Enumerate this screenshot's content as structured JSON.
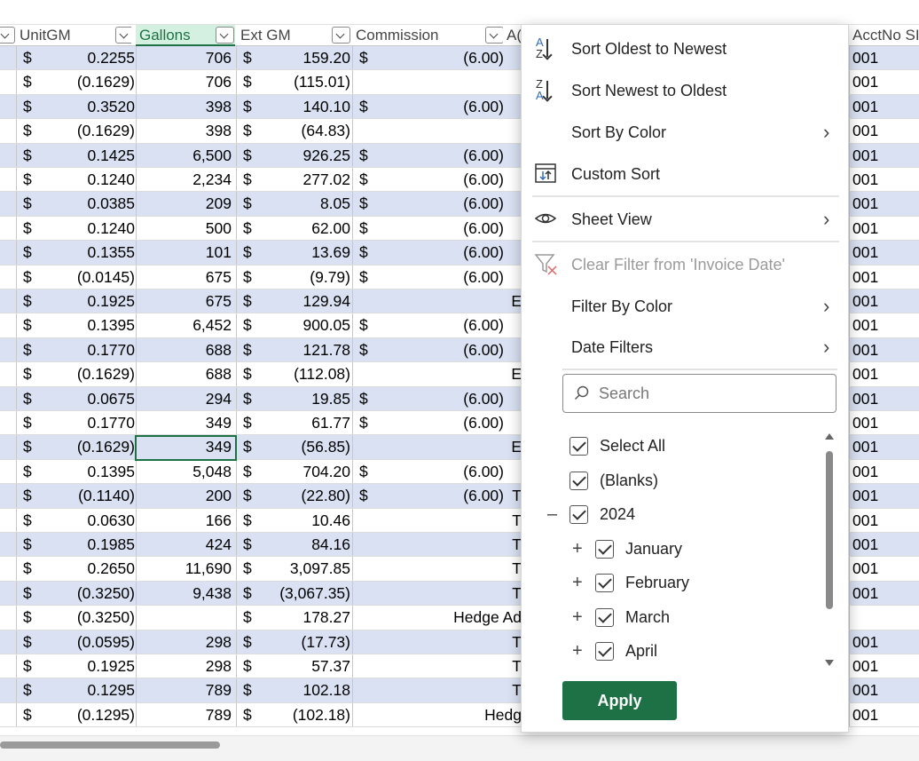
{
  "columns": {
    "unitgm": "UnitGM",
    "gallons": "Gallons",
    "extgm": "Ext GM",
    "commission": "Commission",
    "ac": "A(",
    "acctno": "AcctNo SI"
  },
  "currency_symbol": "$",
  "rows": [
    {
      "unit": "0.2255",
      "gal": "706",
      "ext": "159.20",
      "comm": "(6.00)",
      "note": "",
      "acct": "001"
    },
    {
      "unit": "(0.1629)",
      "gal": "706",
      "ext": "(115.01)",
      "comm": "",
      "note": "",
      "acct": "001"
    },
    {
      "unit": "0.3520",
      "gal": "398",
      "ext": "140.10",
      "comm": "(6.00)",
      "note": "",
      "acct": "001"
    },
    {
      "unit": "(0.1629)",
      "gal": "398",
      "ext": "(64.83)",
      "comm": "",
      "note": "",
      "acct": "001"
    },
    {
      "unit": "0.1425",
      "gal": "6,500",
      "ext": "926.25",
      "comm": "(6.00)",
      "note": "",
      "acct": "001"
    },
    {
      "unit": "0.1240",
      "gal": "2,234",
      "ext": "277.02",
      "comm": "(6.00)",
      "note": "",
      "acct": "001"
    },
    {
      "unit": "0.0385",
      "gal": "209",
      "ext": "8.05",
      "comm": "(6.00)",
      "note": "",
      "acct": "001"
    },
    {
      "unit": "0.1240",
      "gal": "500",
      "ext": "62.00",
      "comm": "(6.00)",
      "note": "",
      "acct": "001"
    },
    {
      "unit": "0.1355",
      "gal": "101",
      "ext": "13.69",
      "comm": "(6.00)",
      "note": "",
      "acct": "001"
    },
    {
      "unit": "(0.0145)",
      "gal": "675",
      "ext": "(9.79)",
      "comm": "(6.00)",
      "note": "",
      "acct": "001"
    },
    {
      "unit": "0.1925",
      "gal": "675",
      "ext": "129.94",
      "comm": "",
      "note": "E",
      "acct": "001"
    },
    {
      "unit": "0.1395",
      "gal": "6,452",
      "ext": "900.05",
      "comm": "(6.00)",
      "note": "",
      "acct": "001"
    },
    {
      "unit": "0.1770",
      "gal": "688",
      "ext": "121.78",
      "comm": "(6.00)",
      "note": "",
      "acct": "001"
    },
    {
      "unit": "(0.1629)",
      "gal": "688",
      "ext": "(112.08)",
      "comm": "",
      "note": "E",
      "acct": "001"
    },
    {
      "unit": "0.0675",
      "gal": "294",
      "ext": "19.85",
      "comm": "(6.00)",
      "note": "",
      "acct": "001"
    },
    {
      "unit": "0.1770",
      "gal": "349",
      "ext": "61.77",
      "comm": "(6.00)",
      "note": "",
      "acct": "001"
    },
    {
      "unit": "(0.1629)",
      "gal": "349",
      "ext": "(56.85)",
      "comm": "",
      "note": "E",
      "acct": "001"
    },
    {
      "unit": "0.1395",
      "gal": "5,048",
      "ext": "704.20",
      "comm": "(6.00)",
      "note": "",
      "acct": "001"
    },
    {
      "unit": "(0.1140)",
      "gal": "200",
      "ext": "(22.80)",
      "comm": "(6.00)",
      "note": "T",
      "acct": "001"
    },
    {
      "unit": "0.0630",
      "gal": "166",
      "ext": "10.46",
      "comm": "",
      "note": "T",
      "acct": "001"
    },
    {
      "unit": "0.1985",
      "gal": "424",
      "ext": "84.16",
      "comm": "",
      "note": "T",
      "acct": "001"
    },
    {
      "unit": "0.2650",
      "gal": "11,690",
      "ext": "3,097.85",
      "comm": "",
      "note": "T",
      "acct": "001"
    },
    {
      "unit": "(0.3250)",
      "gal": "9,438",
      "ext": "(3,067.35)",
      "comm": "",
      "note": "T",
      "acct": "001"
    },
    {
      "unit": "(0.3250)",
      "gal": "",
      "ext": "178.27",
      "comm": "",
      "note": "Hedge Ad",
      "acct": ""
    },
    {
      "unit": "(0.0595)",
      "gal": "298",
      "ext": "(17.73)",
      "comm": "",
      "note": "T",
      "acct": "001"
    },
    {
      "unit": "0.1925",
      "gal": "298",
      "ext": "57.37",
      "comm": "",
      "note": "T",
      "acct": "001"
    },
    {
      "unit": "0.1295",
      "gal": "789",
      "ext": "102.18",
      "comm": "",
      "note": "T",
      "acct": "001"
    },
    {
      "unit": "(0.1295)",
      "gal": "789",
      "ext": "(102.18)",
      "comm": "",
      "note": "Hedg",
      "acct": "001"
    }
  ],
  "menu": {
    "sort_asc": "Sort Oldest to Newest",
    "sort_desc": "Sort Newest to Oldest",
    "sort_by_color": "Sort By Color",
    "custom_sort": "Custom Sort",
    "sheet_view": "Sheet View",
    "clear_filter": "Clear Filter from 'Invoice Date'",
    "filter_by_color": "Filter By Color",
    "date_filters": "Date Filters",
    "search_placeholder": "Search",
    "apply": "Apply"
  },
  "filter_items": [
    {
      "label": "Select All",
      "level": 0,
      "expander": ""
    },
    {
      "label": "(Blanks)",
      "level": 0,
      "expander": ""
    },
    {
      "label": "2024",
      "level": 0,
      "expander": "–"
    },
    {
      "label": "January",
      "level": 1,
      "expander": "+"
    },
    {
      "label": "February",
      "level": 1,
      "expander": "+"
    },
    {
      "label": "March",
      "level": 1,
      "expander": "+"
    },
    {
      "label": "April",
      "level": 1,
      "expander": "+"
    }
  ],
  "icons": {
    "sort_asc_top": "A",
    "sort_asc_bottom": "Z",
    "sort_desc_top": "Z",
    "sort_desc_bottom": "A"
  },
  "colors": {
    "accent": "#1e7145",
    "band": "#d9e1f2",
    "sort_icon_blue": "#2f6db5"
  }
}
